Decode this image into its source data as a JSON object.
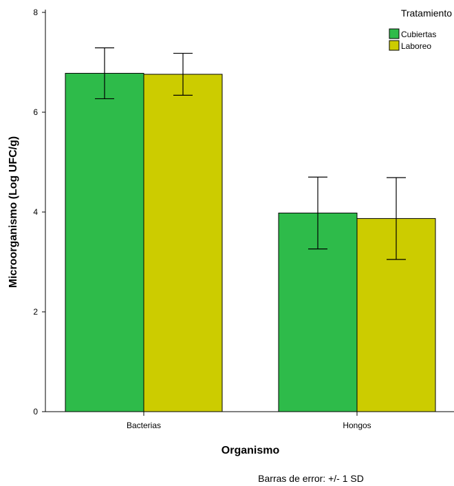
{
  "chart_data": {
    "type": "bar",
    "title": "",
    "xlabel": "Organismo",
    "ylabel": "Microorganismo (Log UFC/g)",
    "categories": [
      "Bacterias",
      "Hongos"
    ],
    "series": [
      {
        "name": "Cubiertas",
        "color": "#2ebb4a",
        "values": [
          6.78,
          3.98
        ],
        "sd": [
          0.51,
          0.72
        ]
      },
      {
        "name": "Laboreo",
        "color": "#cccc00",
        "values": [
          6.76,
          3.87
        ],
        "sd": [
          0.42,
          0.82
        ]
      }
    ],
    "ylim": [
      0,
      8
    ],
    "yticks": [
      0,
      2,
      4,
      6,
      8
    ],
    "legend": {
      "title": "Tratamiento",
      "placement": "top-right"
    },
    "footnote": "Barras de error: +/- 1 SD",
    "grid": false
  }
}
